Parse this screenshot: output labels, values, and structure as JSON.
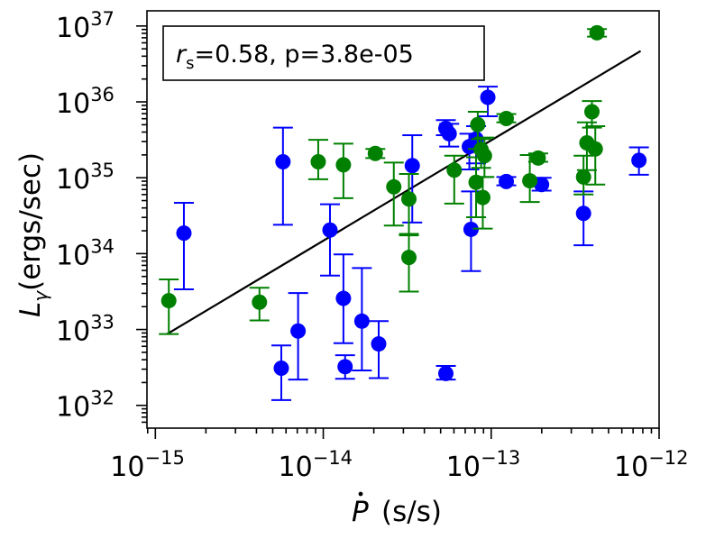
{
  "chart_data": {
    "type": "scatter",
    "title": "",
    "xlabel_symbol": "P",
    "xlabel_unit": "(s/s)",
    "ylabel_symbol": "L",
    "ylabel_sub": "γ",
    "ylabel_unit": "(ergs/sec)",
    "xscale": "log",
    "yscale": "log",
    "xlim_log10": [
      -15.05,
      -12.0
    ],
    "ylim_log10": [
      31.7,
      37.2
    ],
    "x_ticks": [
      {
        "base": "10",
        "exp": "−15",
        "log": -15
      },
      {
        "base": "10",
        "exp": "−14",
        "log": -14
      },
      {
        "base": "10",
        "exp": "−13",
        "log": -13
      },
      {
        "base": "10",
        "exp": "−12",
        "log": -12
      }
    ],
    "y_ticks": [
      {
        "base": "10",
        "exp": "32",
        "log": 32
      },
      {
        "base": "10",
        "exp": "33",
        "log": 33
      },
      {
        "base": "10",
        "exp": "34",
        "log": 34
      },
      {
        "base": "10",
        "exp": "35",
        "log": 35
      },
      {
        "base": "10",
        "exp": "36",
        "log": 36
      },
      {
        "base": "10",
        "exp": "37",
        "log": 37
      }
    ],
    "annotation": {
      "symbol": "r",
      "sub": "s",
      "text": "=0.58, p=3.8e-05"
    },
    "fit_line": {
      "x_log": [
        -14.93,
        -12.11
      ],
      "y_log": [
        32.94,
        36.67
      ]
    },
    "series": [
      {
        "name": "blue",
        "color": "#0000ff",
        "points": [
          {
            "x": -14.83,
            "y": 34.27,
            "ylo": 33.53,
            "yhi": 34.67
          },
          {
            "x": -14.24,
            "y": 35.21,
            "ylo": 34.38,
            "yhi": 35.66
          },
          {
            "x": -14.25,
            "y": 32.49,
            "ylo": 32.07,
            "yhi": 32.79
          },
          {
            "x": -14.15,
            "y": 32.98,
            "ylo": 32.34,
            "yhi": 33.48
          },
          {
            "x": -13.96,
            "y": 34.31,
            "ylo": 33.71,
            "yhi": 34.65
          },
          {
            "x": -13.88,
            "y": 33.41,
            "ylo": 32.82,
            "yhi": 33.99
          },
          {
            "x": -13.87,
            "y": 32.51,
            "ylo": 32.35,
            "yhi": 32.66
          },
          {
            "x": -13.77,
            "y": 33.11,
            "ylo": 32.46,
            "yhi": 33.81
          },
          {
            "x": -13.67,
            "y": 32.81,
            "ylo": 32.36,
            "yhi": 33.11
          },
          {
            "x": -13.47,
            "y": 35.16,
            "ylo": 34.41,
            "yhi": 35.56
          },
          {
            "x": -13.27,
            "y": 32.42,
            "ylo": 32.34,
            "yhi": 32.52
          },
          {
            "x": -13.27,
            "y": 35.65,
            "ylo": 35.56,
            "yhi": 35.76
          },
          {
            "x": -13.25,
            "y": 35.58,
            "ylo": 35.41,
            "yhi": 35.71
          },
          {
            "x": -13.12,
            "y": 34.32,
            "ylo": 33.77,
            "yhi": 34.82
          },
          {
            "x": -13.13,
            "y": 35.41,
            "ylo": 35.11,
            "yhi": 35.58
          },
          {
            "x": -13.09,
            "y": 35.51,
            "ylo": 35.19,
            "yhi": 35.68
          },
          {
            "x": -13.02,
            "y": 36.06,
            "ylo": 35.81,
            "yhi": 36.2
          },
          {
            "x": -12.91,
            "y": 34.95,
            "ylo": 34.9,
            "yhi": 35.01
          },
          {
            "x": -12.7,
            "y": 34.91,
            "ylo": 34.83,
            "yhi": 35.0
          },
          {
            "x": -12.45,
            "y": 34.53,
            "ylo": 34.11,
            "yhi": 34.82
          },
          {
            "x": -12.12,
            "y": 35.23,
            "ylo": 35.04,
            "yhi": 35.4
          }
        ]
      },
      {
        "name": "green",
        "color": "#008000",
        "points": [
          {
            "x": -14.92,
            "y": 33.38,
            "ylo": 32.94,
            "yhi": 33.66
          },
          {
            "x": -14.38,
            "y": 33.36,
            "ylo": 33.12,
            "yhi": 33.55
          },
          {
            "x": -14.03,
            "y": 35.21,
            "ylo": 34.98,
            "yhi": 35.5
          },
          {
            "x": -13.88,
            "y": 35.17,
            "ylo": 34.73,
            "yhi": 35.45
          },
          {
            "x": -13.69,
            "y": 35.32,
            "ylo": 35.26,
            "yhi": 35.38
          },
          {
            "x": -13.58,
            "y": 34.88,
            "ylo": 34.37,
            "yhi": 35.2
          },
          {
            "x": -13.49,
            "y": 33.95,
            "ylo": 33.5,
            "yhi": 34.24
          },
          {
            "x": -13.49,
            "y": 34.72,
            "ylo": 34.26,
            "yhi": 35.05
          },
          {
            "x": -13.22,
            "y": 35.1,
            "ylo": 34.66,
            "yhi": 35.29
          },
          {
            "x": -13.09,
            "y": 34.94,
            "ylo": 34.48,
            "yhi": 35.27
          },
          {
            "x": -13.08,
            "y": 35.7,
            "ylo": 35.38,
            "yhi": 35.87
          },
          {
            "x": -13.06,
            "y": 35.37,
            "ylo": 35.13,
            "yhi": 35.51
          },
          {
            "x": -13.05,
            "y": 34.74,
            "ylo": 34.33,
            "yhi": 35.01
          },
          {
            "x": -13.04,
            "y": 35.29,
            "ylo": 35.01,
            "yhi": 35.53
          },
          {
            "x": -12.91,
            "y": 35.78,
            "ylo": 35.73,
            "yhi": 35.84
          },
          {
            "x": -12.77,
            "y": 34.96,
            "ylo": 34.68,
            "yhi": 35.3
          },
          {
            "x": -12.72,
            "y": 35.26,
            "ylo": 35.21,
            "yhi": 35.32
          },
          {
            "x": -12.45,
            "y": 35.01,
            "ylo": 34.78,
            "yhi": 35.29
          },
          {
            "x": -12.43,
            "y": 35.46,
            "ylo": 35.1,
            "yhi": 35.73
          },
          {
            "x": -12.4,
            "y": 35.87,
            "ylo": 35.66,
            "yhi": 36.01
          },
          {
            "x": -12.38,
            "y": 35.38,
            "ylo": 34.91,
            "yhi": 35.68
          },
          {
            "x": -12.37,
            "y": 36.91,
            "ylo": 36.86,
            "yhi": 36.96
          }
        ]
      }
    ]
  }
}
